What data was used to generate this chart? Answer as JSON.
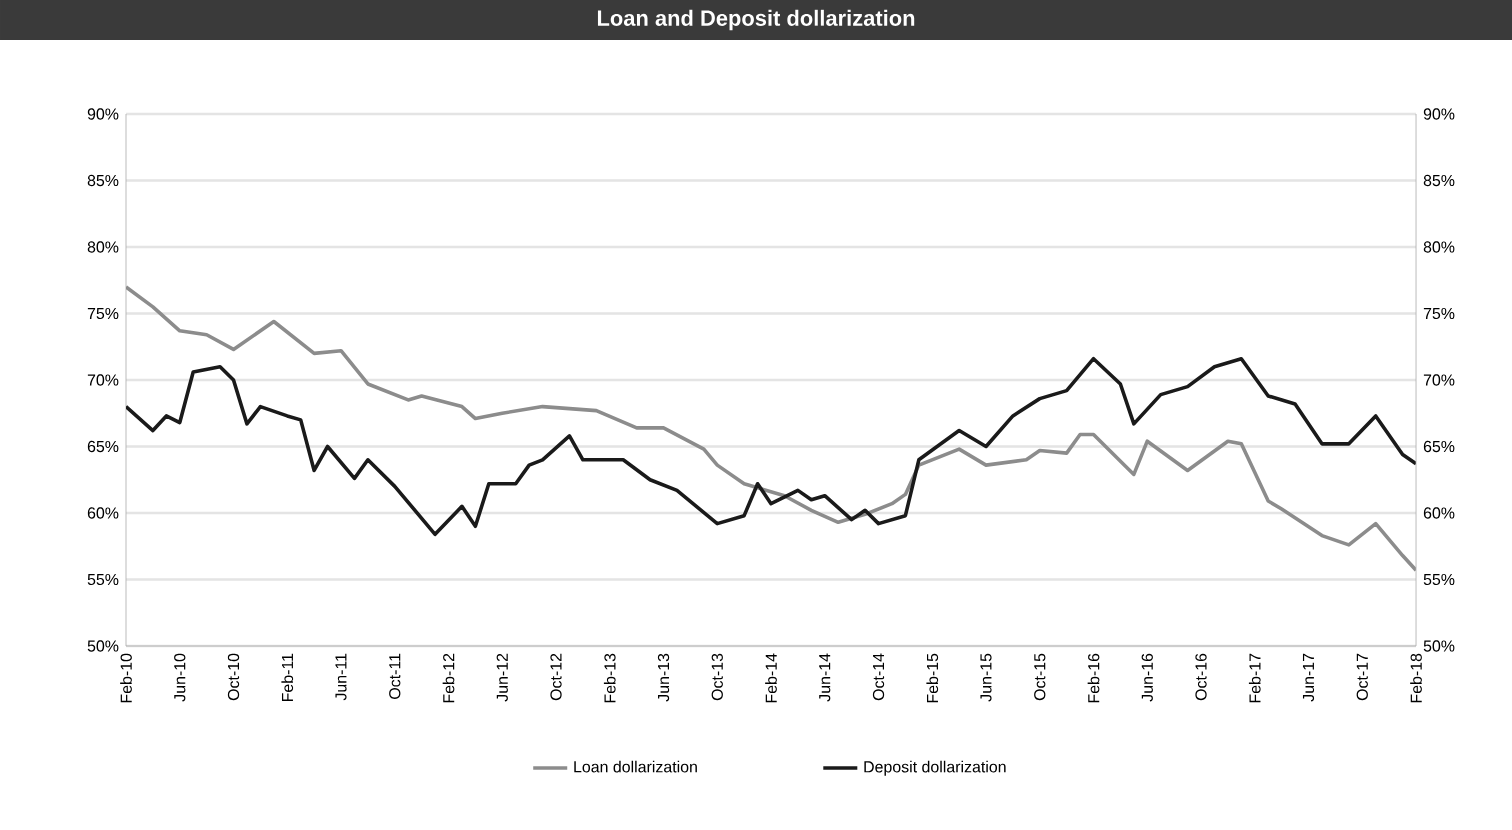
{
  "chart_data": {
    "type": "line",
    "title": "Loan and Deposit dollarization",
    "xlim": [
      "2010-02",
      "2018-02"
    ],
    "xticks": [
      {
        "value": "2010-02",
        "label": "Feb-10"
      },
      {
        "value": "2010-06",
        "label": "Jun-10"
      },
      {
        "value": "2010-10",
        "label": "Oct-10"
      },
      {
        "value": "2011-02",
        "label": "Feb-11"
      },
      {
        "value": "2011-06",
        "label": "Jun-11"
      },
      {
        "value": "2011-10",
        "label": "Oct-11"
      },
      {
        "value": "2012-02",
        "label": "Feb-12"
      },
      {
        "value": "2012-06",
        "label": "Jun-12"
      },
      {
        "value": "2012-10",
        "label": "Oct-12"
      },
      {
        "value": "2013-02",
        "label": "Feb-13"
      },
      {
        "value": "2013-06",
        "label": "Jun-13"
      },
      {
        "value": "2013-10",
        "label": "Oct-13"
      },
      {
        "value": "2014-02",
        "label": "Feb-14"
      },
      {
        "value": "2014-06",
        "label": "Jun-14"
      },
      {
        "value": "2014-10",
        "label": "Oct-14"
      },
      {
        "value": "2015-02",
        "label": "Feb-15"
      },
      {
        "value": "2015-06",
        "label": "Jun-15"
      },
      {
        "value": "2015-10",
        "label": "Oct-15"
      },
      {
        "value": "2016-02",
        "label": "Feb-16"
      },
      {
        "value": "2016-06",
        "label": "Jun-16"
      },
      {
        "value": "2016-10",
        "label": "Oct-16"
      },
      {
        "value": "2017-02",
        "label": "Feb-17"
      },
      {
        "value": "2017-06",
        "label": "Jun-17"
      },
      {
        "value": "2017-10",
        "label": "Oct-17"
      },
      {
        "value": "2018-02",
        "label": "Feb-18"
      }
    ],
    "ylim": [
      50,
      90
    ],
    "yticks": [
      {
        "value": 50,
        "label": "50%"
      },
      {
        "value": 55,
        "label": "55%"
      },
      {
        "value": 60,
        "label": "60%"
      },
      {
        "value": 65,
        "label": "65%"
      },
      {
        "value": 70,
        "label": "70%"
      },
      {
        "value": 75,
        "label": "75%"
      },
      {
        "value": 80,
        "label": "80%"
      },
      {
        "value": 85,
        "label": "85%"
      },
      {
        "value": 90,
        "label": "90%"
      }
    ],
    "y2lim": [
      50,
      90
    ],
    "y2ticks": [
      {
        "value": 50,
        "label": "50%"
      },
      {
        "value": 55,
        "label": "55%"
      },
      {
        "value": 60,
        "label": "60%"
      },
      {
        "value": 65,
        "label": "65%"
      },
      {
        "value": 70,
        "label": "70%"
      },
      {
        "value": 75,
        "label": "75%"
      },
      {
        "value": 80,
        "label": "80%"
      },
      {
        "value": 85,
        "label": "85%"
      },
      {
        "value": 90,
        "label": "90%"
      }
    ],
    "grid": "y",
    "legend": "bottom",
    "series": [
      {
        "name": "Loan dollarization",
        "color": "#8c8c8c",
        "x": [
          "2010-02",
          "2010-04",
          "2010-06",
          "2010-08",
          "2010-10",
          "2011-01",
          "2011-04",
          "2011-06",
          "2011-08",
          "2011-11",
          "2011-12",
          "2012-03",
          "2012-04",
          "2012-06",
          "2012-09",
          "2013-01",
          "2013-04",
          "2013-06",
          "2013-09",
          "2013-10",
          "2013-12",
          "2014-03",
          "2014-05",
          "2014-07",
          "2014-09",
          "2014-11",
          "2014-12",
          "2015-01",
          "2015-04",
          "2015-06",
          "2015-09",
          "2015-10",
          "2015-12",
          "2016-01",
          "2016-02",
          "2016-05",
          "2016-06",
          "2016-09",
          "2016-12",
          "2017-01",
          "2017-03",
          "2017-04",
          "2017-07",
          "2017-09",
          "2017-11",
          "2018-01",
          "2018-02"
        ],
        "values": [
          77.0,
          75.5,
          73.7,
          73.4,
          72.3,
          74.4,
          72.0,
          72.2,
          69.7,
          68.5,
          68.8,
          68.0,
          67.1,
          67.5,
          68.0,
          67.7,
          66.4,
          66.4,
          64.8,
          63.6,
          62.2,
          61.3,
          60.2,
          59.3,
          59.9,
          60.7,
          61.4,
          63.6,
          64.8,
          63.6,
          64.0,
          64.7,
          64.5,
          65.9,
          65.9,
          62.9,
          65.4,
          63.2,
          65.4,
          65.2,
          60.9,
          60.3,
          58.3,
          57.6,
          59.2,
          56.8,
          55.7
        ]
      },
      {
        "name": "Deposit dollarization",
        "color": "#1a1a1a",
        "x": [
          "2010-02",
          "2010-04",
          "2010-05",
          "2010-06",
          "2010-07",
          "2010-09",
          "2010-10",
          "2010-11",
          "2010-12",
          "2011-02",
          "2011-03",
          "2011-04",
          "2011-05",
          "2011-07",
          "2011-08",
          "2011-10",
          "2012-01",
          "2012-03",
          "2012-04",
          "2012-05",
          "2012-07",
          "2012-08",
          "2012-09",
          "2012-11",
          "2012-12",
          "2013-03",
          "2013-05",
          "2013-07",
          "2013-10",
          "2013-12",
          "2014-01",
          "2014-02",
          "2014-04",
          "2014-05",
          "2014-06",
          "2014-08",
          "2014-09",
          "2014-10",
          "2014-12",
          "2015-01",
          "2015-04",
          "2015-06",
          "2015-08",
          "2015-10",
          "2015-12",
          "2016-02",
          "2016-04",
          "2016-05",
          "2016-07",
          "2016-09",
          "2016-11",
          "2017-01",
          "2017-03",
          "2017-05",
          "2017-07",
          "2017-09",
          "2017-11",
          "2018-01",
          "2018-02"
        ],
        "values": [
          68.0,
          66.2,
          67.3,
          66.8,
          70.6,
          71.0,
          70.0,
          66.7,
          68.0,
          67.3,
          67.0,
          63.2,
          65.0,
          62.6,
          64.0,
          62.0,
          58.4,
          60.5,
          59.0,
          62.2,
          62.2,
          63.6,
          64.0,
          65.8,
          64.0,
          64.0,
          62.5,
          61.7,
          59.2,
          59.8,
          62.2,
          60.7,
          61.7,
          61.0,
          61.3,
          59.5,
          60.2,
          59.2,
          59.8,
          64.0,
          66.2,
          65.0,
          67.3,
          68.6,
          69.2,
          71.6,
          69.7,
          66.7,
          68.9,
          69.5,
          71.0,
          71.6,
          68.8,
          68.2,
          65.2,
          65.2,
          67.3,
          64.4,
          63.7
        ]
      }
    ]
  }
}
